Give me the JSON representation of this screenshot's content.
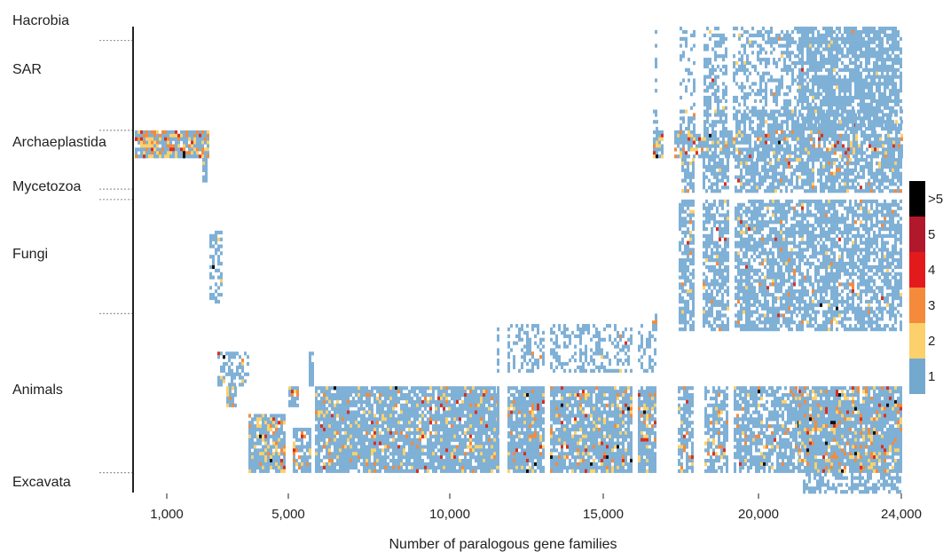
{
  "chart_data": {
    "type": "heatmap",
    "title": "",
    "xlabel": "Number of paralogous gene families",
    "ylabel": "",
    "x_ticks": [
      {
        "value": 1000,
        "label": "1,000"
      },
      {
        "value": 5000,
        "label": "5,000"
      },
      {
        "value": 10000,
        "label": "10,000"
      },
      {
        "value": 15000,
        "label": "15,000"
      },
      {
        "value": 20000,
        "label": "20,000"
      },
      {
        "value": 24000,
        "label": "24,000"
      }
    ],
    "xlim": [
      0,
      24000
    ],
    "groups": [
      {
        "name": "Hacrobia",
        "row_start": 0,
        "row_end": 4
      },
      {
        "name": "SAR",
        "row_start": 4,
        "row_end": 30
      },
      {
        "name": "Archaeplastida",
        "row_start": 30,
        "row_end": 47
      },
      {
        "name": "Mycetozoa",
        "row_start": 47,
        "row_end": 50
      },
      {
        "name": "Fungi",
        "row_start": 50,
        "row_end": 83
      },
      {
        "name": "Animals",
        "row_start": 83,
        "row_end": 129
      },
      {
        "name": "Excavata",
        "row_start": 129,
        "row_end": 135
      }
    ],
    "legend": {
      "placement": "right",
      "entries": [
        {
          "label": ">5",
          "color": "#000000"
        },
        {
          "label": "5",
          "color": "#b2182b"
        },
        {
          "label": "4",
          "color": "#e31a1c"
        },
        {
          "label": "3",
          "color": "#f58a3a"
        },
        {
          "label": "2",
          "color": "#fcd16b"
        },
        {
          "label": "1",
          "color": "#74a9cf"
        }
      ]
    }
  }
}
